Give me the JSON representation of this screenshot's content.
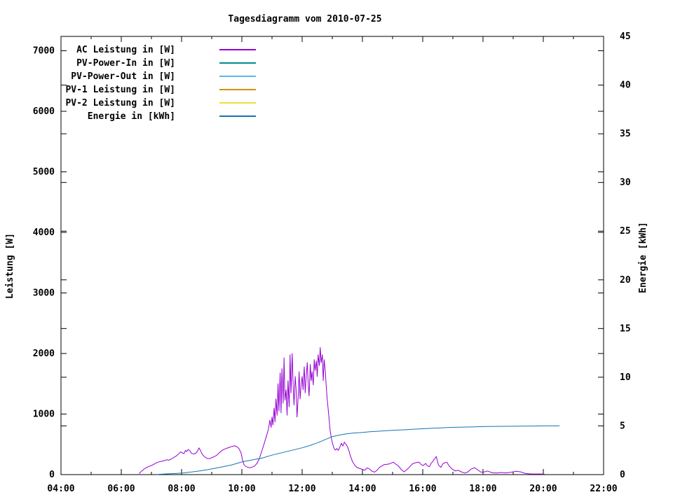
{
  "title": "Tagesdiagramm vom 2010-07-25",
  "colors": {
    "background": "#ffffff",
    "axis": "#000000",
    "text": "#000000",
    "ac": "#9400d3",
    "pv_in": "#008b8b",
    "pv_out": "#5cb8e8",
    "pv1": "#d49000",
    "pv2": "#eee040",
    "energie": "#1573b0"
  },
  "chart_data": {
    "type": "line",
    "title": "Tagesdiagramm vom 2010-07-25",
    "grid": false,
    "legend_position": "top-left-inside",
    "x_axis": {
      "range_hours": [
        4,
        22
      ],
      "major_tick_labels": [
        "04:00",
        "06:00",
        "08:00",
        "10:00",
        "12:00",
        "14:00",
        "16:00",
        "18:00",
        "20:00",
        "22:00"
      ],
      "minor_tick_every_hours": 1
    },
    "y_left": {
      "label": "Leistung [W]",
      "range": [
        0,
        7237
      ],
      "ticks": [
        0,
        1000,
        2000,
        3000,
        4000,
        5000,
        6000,
        7000
      ]
    },
    "y_right": {
      "label": "Energie [kWh]",
      "range": [
        0,
        45
      ],
      "ticks": [
        0,
        5,
        10,
        15,
        20,
        25,
        30,
        35,
        40,
        45
      ]
    },
    "legend": [
      {
        "label": "AC Leistung in [W]",
        "color": "#9400d3"
      },
      {
        "label": "PV-Power-In in [W]",
        "color": "#008b8b"
      },
      {
        "label": "PV-Power-Out in [W]",
        "color": "#5cb8e8"
      },
      {
        "label": "PV-1 Leistung in [W]",
        "color": "#d49000"
      },
      {
        "label": "PV-2 Leistung in [W]",
        "color": "#eee040"
      },
      {
        "label": "Energie in [kWh]",
        "color": "#1573b0"
      }
    ],
    "series": [
      {
        "name": "AC Leistung in [W]",
        "color": "#9400d3",
        "axis": "left",
        "points": [
          [
            6.6,
            20
          ],
          [
            6.67,
            55
          ],
          [
            6.75,
            90
          ],
          [
            6.83,
            115
          ],
          [
            6.92,
            135
          ],
          [
            7.0,
            150
          ],
          [
            7.08,
            170
          ],
          [
            7.17,
            195
          ],
          [
            7.25,
            210
          ],
          [
            7.33,
            220
          ],
          [
            7.42,
            230
          ],
          [
            7.5,
            245
          ],
          [
            7.58,
            238
          ],
          [
            7.67,
            260
          ],
          [
            7.75,
            285
          ],
          [
            7.83,
            310
          ],
          [
            7.92,
            350
          ],
          [
            7.97,
            375
          ],
          [
            8.03,
            358
          ],
          [
            8.08,
            345
          ],
          [
            8.13,
            400
          ],
          [
            8.17,
            380
          ],
          [
            8.22,
            415
          ],
          [
            8.28,
            390
          ],
          [
            8.33,
            350
          ],
          [
            8.42,
            340
          ],
          [
            8.5,
            365
          ],
          [
            8.58,
            440
          ],
          [
            8.63,
            395
          ],
          [
            8.68,
            340
          ],
          [
            8.75,
            300
          ],
          [
            8.83,
            270
          ],
          [
            8.92,
            262
          ],
          [
            9.0,
            280
          ],
          [
            9.08,
            295
          ],
          [
            9.17,
            320
          ],
          [
            9.25,
            360
          ],
          [
            9.33,
            395
          ],
          [
            9.42,
            420
          ],
          [
            9.5,
            435
          ],
          [
            9.58,
            450
          ],
          [
            9.67,
            465
          ],
          [
            9.75,
            475
          ],
          [
            9.83,
            462
          ],
          [
            9.9,
            432
          ],
          [
            9.97,
            365
          ],
          [
            10.02,
            245
          ],
          [
            10.07,
            165
          ],
          [
            10.13,
            135
          ],
          [
            10.2,
            120
          ],
          [
            10.28,
            113
          ],
          [
            10.35,
            125
          ],
          [
            10.42,
            140
          ],
          [
            10.5,
            185
          ],
          [
            10.58,
            265
          ],
          [
            10.67,
            400
          ],
          [
            10.75,
            530
          ],
          [
            10.82,
            645
          ],
          [
            10.88,
            745
          ],
          [
            10.93,
            900
          ],
          [
            10.97,
            780
          ],
          [
            11.0,
            950
          ],
          [
            11.03,
            820
          ],
          [
            11.07,
            1100
          ],
          [
            11.1,
            870
          ],
          [
            11.13,
            1250
          ],
          [
            11.17,
            980
          ],
          [
            11.2,
            1500
          ],
          [
            11.23,
            1050
          ],
          [
            11.27,
            1680
          ],
          [
            11.3,
            1020
          ],
          [
            11.33,
            1750
          ],
          [
            11.37,
            1180
          ],
          [
            11.4,
            1930
          ],
          [
            11.43,
            1230
          ],
          [
            11.47,
            1400
          ],
          [
            11.5,
            980
          ],
          [
            11.53,
            1550
          ],
          [
            11.57,
            1120
          ],
          [
            11.6,
            1980
          ],
          [
            11.63,
            1350
          ],
          [
            11.67,
            2000
          ],
          [
            11.7,
            1500
          ],
          [
            11.73,
            1150
          ],
          [
            11.77,
            1620
          ],
          [
            11.8,
            1400
          ],
          [
            11.83,
            950
          ],
          [
            11.87,
            1300
          ],
          [
            11.9,
            1700
          ],
          [
            11.93,
            1250
          ],
          [
            11.97,
            1500
          ],
          [
            12.0,
            1620
          ],
          [
            12.03,
            1400
          ],
          [
            12.07,
            1780
          ],
          [
            12.1,
            1350
          ],
          [
            12.13,
            1600
          ],
          [
            12.17,
            1850
          ],
          [
            12.2,
            1500
          ],
          [
            12.23,
            1300
          ],
          [
            12.27,
            1820
          ],
          [
            12.3,
            1550
          ],
          [
            12.33,
            1700
          ],
          [
            12.37,
            1480
          ],
          [
            12.4,
            1900
          ],
          [
            12.43,
            1720
          ],
          [
            12.47,
            1880
          ],
          [
            12.5,
            1620
          ],
          [
            12.53,
            1980
          ],
          [
            12.57,
            1800
          ],
          [
            12.6,
            2100
          ],
          [
            12.63,
            1850
          ],
          [
            12.67,
            1980
          ],
          [
            12.7,
            1550
          ],
          [
            12.73,
            1900
          ],
          [
            12.77,
            1700
          ],
          [
            12.8,
            1450
          ],
          [
            12.83,
            1250
          ],
          [
            12.87,
            1050
          ],
          [
            12.9,
            880
          ],
          [
            12.93,
            720
          ],
          [
            12.97,
            600
          ],
          [
            13.0,
            530
          ],
          [
            13.05,
            440
          ],
          [
            13.1,
            405
          ],
          [
            13.15,
            430
          ],
          [
            13.2,
            400
          ],
          [
            13.25,
            455
          ],
          [
            13.3,
            520
          ],
          [
            13.35,
            470
          ],
          [
            13.4,
            535
          ],
          [
            13.45,
            505
          ],
          [
            13.5,
            465
          ],
          [
            13.55,
            395
          ],
          [
            13.6,
            310
          ],
          [
            13.67,
            215
          ],
          [
            13.75,
            150
          ],
          [
            13.83,
            115
          ],
          [
            13.92,
            100
          ],
          [
            14.0,
            85
          ],
          [
            14.07,
            70
          ],
          [
            14.15,
            110
          ],
          [
            14.23,
            95
          ],
          [
            14.32,
            55
          ],
          [
            14.4,
            40
          ],
          [
            14.48,
            70
          ],
          [
            14.57,
            120
          ],
          [
            14.72,
            165
          ],
          [
            14.88,
            175
          ],
          [
            15.02,
            205
          ],
          [
            15.1,
            175
          ],
          [
            15.18,
            150
          ],
          [
            15.28,
            90
          ],
          [
            15.38,
            45
          ],
          [
            15.47,
            80
          ],
          [
            15.57,
            130
          ],
          [
            15.65,
            175
          ],
          [
            15.78,
            200
          ],
          [
            15.88,
            205
          ],
          [
            15.95,
            165
          ],
          [
            16.02,
            150
          ],
          [
            16.1,
            185
          ],
          [
            16.15,
            150
          ],
          [
            16.22,
            130
          ],
          [
            16.28,
            185
          ],
          [
            16.35,
            230
          ],
          [
            16.45,
            300
          ],
          [
            16.52,
            160
          ],
          [
            16.6,
            120
          ],
          [
            16.68,
            185
          ],
          [
            16.8,
            205
          ],
          [
            16.88,
            140
          ],
          [
            16.97,
            95
          ],
          [
            17.08,
            60
          ],
          [
            17.18,
            70
          ],
          [
            17.3,
            40
          ],
          [
            17.4,
            25
          ],
          [
            17.5,
            45
          ],
          [
            17.6,
            90
          ],
          [
            17.72,
            115
          ],
          [
            17.82,
            80
          ],
          [
            17.93,
            40
          ],
          [
            18.05,
            45
          ],
          [
            18.15,
            60
          ],
          [
            18.3,
            30
          ],
          [
            18.45,
            25
          ],
          [
            18.6,
            35
          ],
          [
            18.75,
            28
          ],
          [
            18.95,
            40
          ],
          [
            19.1,
            55
          ],
          [
            19.25,
            45
          ],
          [
            19.4,
            20
          ],
          [
            19.55,
            12
          ],
          [
            19.7,
            10
          ],
          [
            19.85,
            10
          ],
          [
            20.0,
            8
          ],
          [
            20.05,
            5
          ]
        ]
      },
      {
        "name": "PV-Power-In in [W]",
        "color": "#008b8b",
        "axis": "left",
        "points": []
      },
      {
        "name": "PV-Power-Out in [W]",
        "color": "#5cb8e8",
        "axis": "left",
        "points": []
      },
      {
        "name": "PV-1 Leistung in [W]",
        "color": "#d49000",
        "axis": "left",
        "points": []
      },
      {
        "name": "PV-2 Leistung in [W]",
        "color": "#eee040",
        "axis": "left",
        "points": []
      },
      {
        "name": "Energie in [kWh]",
        "color": "#1573b0",
        "axis": "right",
        "points": [
          [
            7.17,
            0.02
          ],
          [
            7.5,
            0.07
          ],
          [
            8.0,
            0.15
          ],
          [
            8.33,
            0.27
          ],
          [
            8.67,
            0.4
          ],
          [
            9.0,
            0.58
          ],
          [
            9.33,
            0.78
          ],
          [
            9.67,
            1.0
          ],
          [
            10.0,
            1.3
          ],
          [
            10.33,
            1.5
          ],
          [
            10.67,
            1.7
          ],
          [
            11.0,
            2.0
          ],
          [
            11.33,
            2.25
          ],
          [
            11.67,
            2.5
          ],
          [
            12.0,
            2.75
          ],
          [
            12.25,
            2.98
          ],
          [
            12.5,
            3.25
          ],
          [
            12.75,
            3.58
          ],
          [
            13.0,
            3.9
          ],
          [
            13.17,
            4.02
          ],
          [
            13.33,
            4.12
          ],
          [
            13.5,
            4.2
          ],
          [
            13.67,
            4.26
          ],
          [
            13.83,
            4.3
          ],
          [
            14.0,
            4.33
          ],
          [
            14.25,
            4.4
          ],
          [
            14.5,
            4.45
          ],
          [
            14.75,
            4.5
          ],
          [
            15.0,
            4.54
          ],
          [
            15.25,
            4.58
          ],
          [
            15.5,
            4.62
          ],
          [
            15.75,
            4.67
          ],
          [
            16.0,
            4.71
          ],
          [
            16.25,
            4.75
          ],
          [
            16.5,
            4.78
          ],
          [
            16.75,
            4.82
          ],
          [
            17.0,
            4.85
          ],
          [
            17.25,
            4.87
          ],
          [
            17.5,
            4.89
          ],
          [
            17.75,
            4.91
          ],
          [
            18.0,
            4.93
          ],
          [
            18.25,
            4.94
          ],
          [
            18.5,
            4.95
          ],
          [
            18.75,
            4.96
          ],
          [
            19.0,
            4.97
          ],
          [
            19.25,
            4.98
          ],
          [
            19.5,
            4.98
          ],
          [
            19.75,
            4.99
          ],
          [
            20.0,
            5.0
          ],
          [
            20.3,
            5.0
          ],
          [
            20.53,
            5.0
          ]
        ]
      }
    ]
  }
}
